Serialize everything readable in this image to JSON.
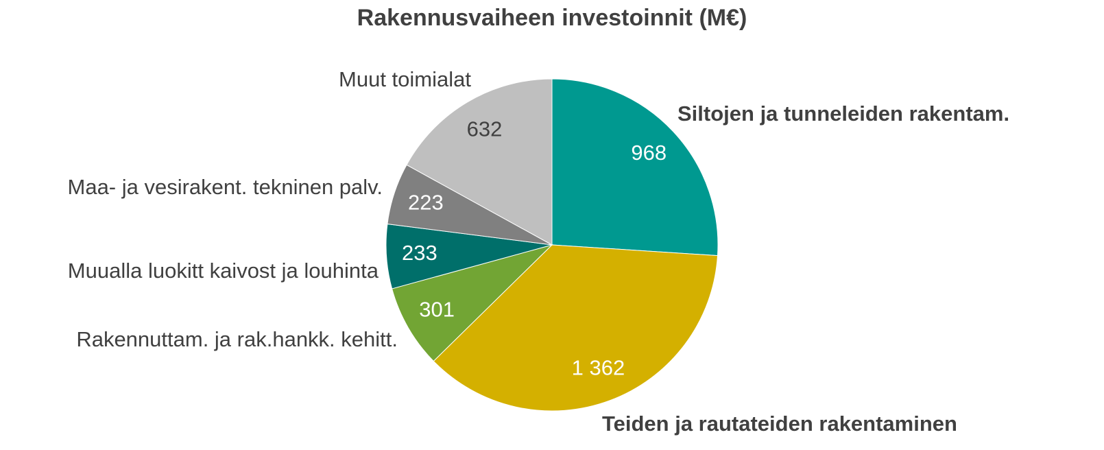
{
  "chart_data": {
    "type": "pie",
    "title": "Rakennusvaiheen investoinnit (M€)",
    "categories": [
      "Siltojen ja tunneleiden rakentam.",
      "Teiden ja rautateiden rakentaminen",
      "Rakennuttam. ja rak.hankk. kehitt.",
      "Muualla luokitt kaivost ja louhinta",
      "Maa- ja vesirakent. tekninen palv.",
      "Muut toimialat"
    ],
    "values": [
      968,
      1362,
      301,
      233,
      223,
      632
    ],
    "value_labels": [
      "968",
      "1 362",
      "301",
      "233",
      "223",
      "632"
    ],
    "colors": [
      "#009990",
      "#d4b000",
      "#72a534",
      "#006f6a",
      "#808080",
      "#bfbfbf"
    ]
  }
}
